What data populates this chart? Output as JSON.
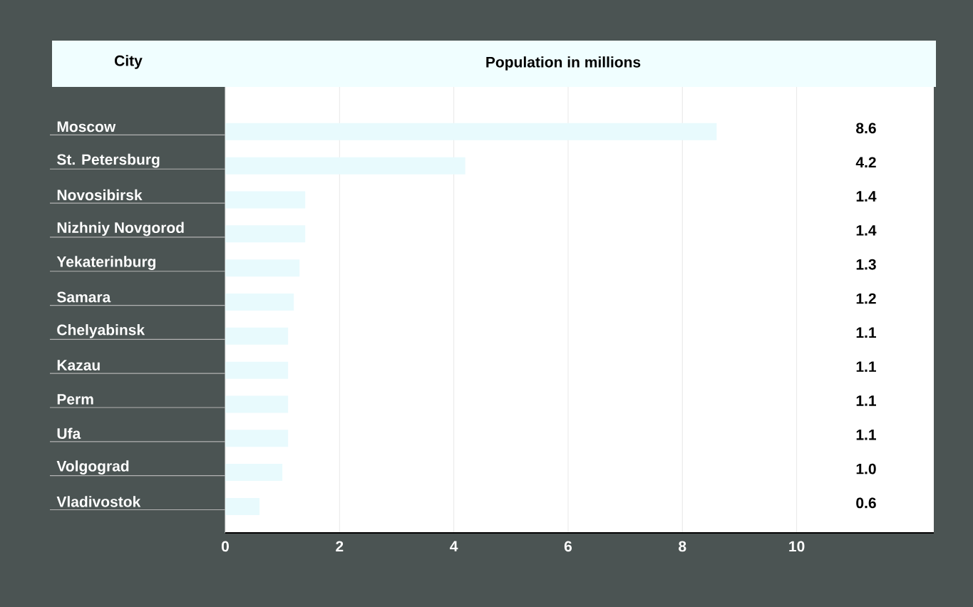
{
  "chart_data": {
    "type": "bar",
    "orientation": "horizontal",
    "title": "Population in millions",
    "ylabel": "City",
    "categories": [
      "Moscow",
      "St. Petersburg",
      "Novosibirsk",
      "Nizhniy Novgorod",
      "Yekaterinburg",
      "Samara",
      "Chelyabinsk",
      "Kazau",
      "Perm",
      "Ufa",
      "Volgograd",
      "Vladivostok"
    ],
    "values": [
      8.6,
      4.2,
      1.4,
      1.4,
      1.3,
      1.2,
      1.1,
      1.1,
      1.1,
      1.1,
      1.0,
      0.6
    ],
    "value_labels": [
      "8.6",
      "4.2",
      "1.4",
      "1.4",
      "1.3",
      "1.2",
      "1.1",
      "1.1",
      "1.1",
      "1.1",
      "1.0",
      "0.6"
    ],
    "color": "#e8fafd",
    "xlim": [
      0,
      12.4
    ],
    "xticks": [
      0,
      2,
      4,
      6,
      8,
      10
    ],
    "grid": "x"
  }
}
